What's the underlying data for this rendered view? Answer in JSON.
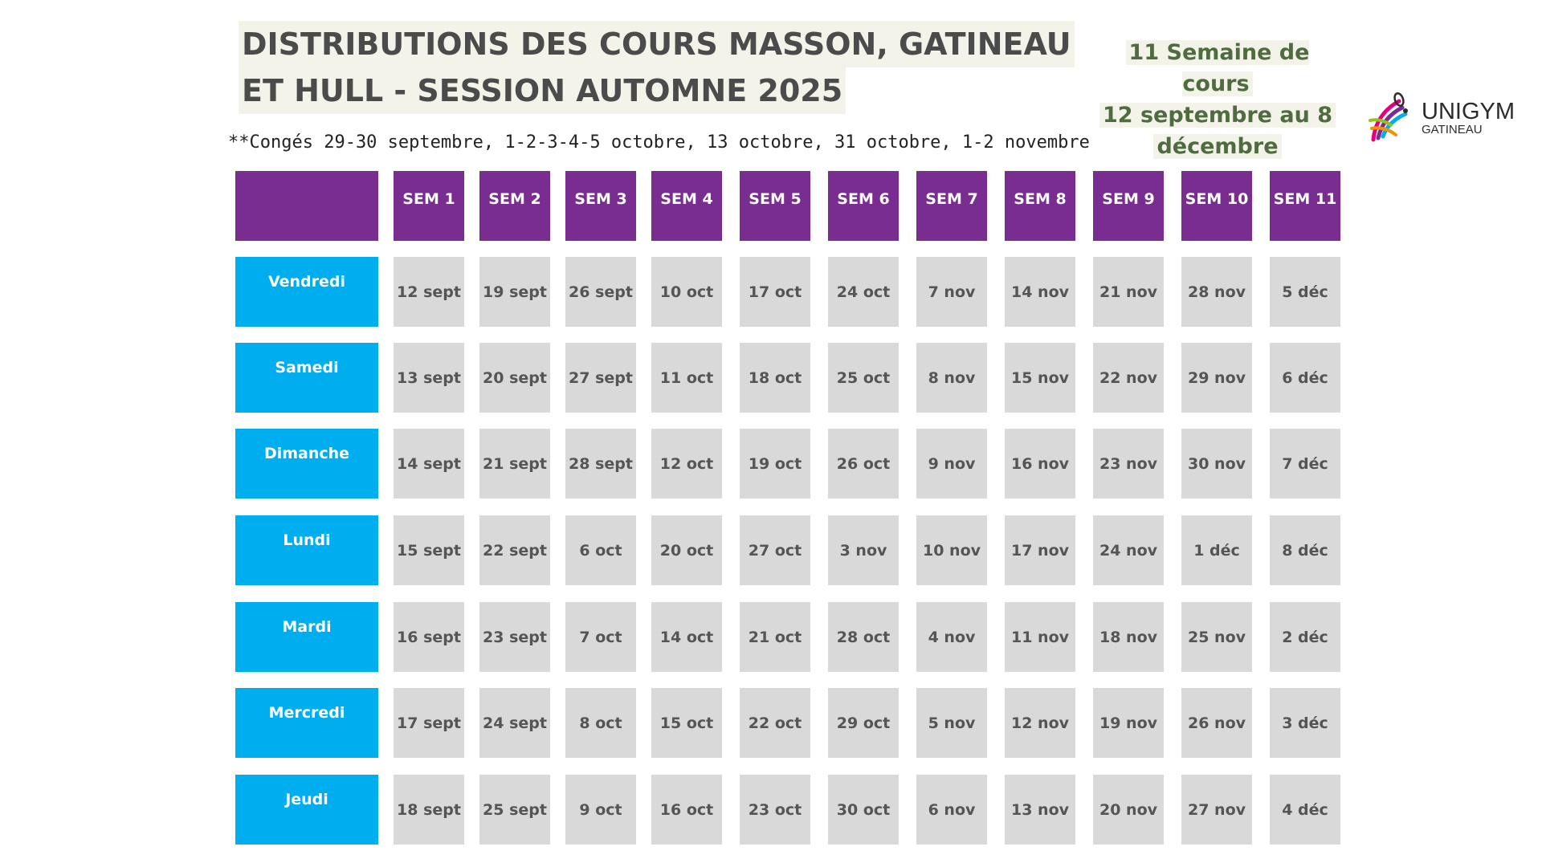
{
  "title": {
    "line1": "DISTRIBUTIONS DES COURS MASSON, GATINEAU",
    "line2": "ET HULL - SESSION AUTOMNE 2025"
  },
  "session_info": {
    "line1": "11 Semaine de cours",
    "line2": "12 septembre au 8",
    "line3": "décembre"
  },
  "logo": {
    "name": "UNIGYM",
    "sub": "GATINEAU"
  },
  "holidays_note": "**Congés 29-30 septembre, 1-2-3-4-5 octobre, 13 octobre, 31 octobre, 1-2 novembre",
  "colors": {
    "header_purple": "#7a2d91",
    "day_blue": "#00adef",
    "date_grey": "#d9d9d9",
    "title_bg": "#f3f3ea",
    "session_green": "#4f6b40"
  },
  "schedule": {
    "weeks": [
      "SEM 1",
      "SEM 2",
      "SEM 3",
      "SEM 4",
      "SEM 5",
      "SEM 6",
      "SEM 7",
      "SEM 8",
      "SEM 9",
      "SEM 10",
      "SEM 11"
    ],
    "rows": [
      {
        "day": "Vendredi",
        "dates": [
          "12 sept",
          "19 sept",
          "26 sept",
          "10 oct",
          "17 oct",
          "24 oct",
          "7 nov",
          "14 nov",
          "21 nov",
          "28 nov",
          "5 déc"
        ]
      },
      {
        "day": "Samedi",
        "dates": [
          "13 sept",
          "20 sept",
          "27 sept",
          "11 oct",
          "18 oct",
          "25 oct",
          "8 nov",
          "15 nov",
          "22 nov",
          "29 nov",
          "6 déc"
        ]
      },
      {
        "day": "Dimanche",
        "dates": [
          "14 sept",
          "21 sept",
          "28 sept",
          "12 oct",
          "19 oct",
          "26 oct",
          "9 nov",
          "16 nov",
          "23 nov",
          "30 nov",
          "7 déc"
        ]
      },
      {
        "day": "Lundi",
        "dates": [
          "15 sept",
          "22 sept",
          "6 oct",
          "20 oct",
          "27 oct",
          "3 nov",
          "10 nov",
          "17 nov",
          "24 nov",
          "1 déc",
          "8 déc"
        ]
      },
      {
        "day": "Mardi",
        "dates": [
          "16 sept",
          "23 sept",
          "7 oct",
          "14 oct",
          "21 oct",
          "28 oct",
          "4 nov",
          "11 nov",
          "18 nov",
          "25 nov",
          "2 déc"
        ]
      },
      {
        "day": "Mercredi",
        "dates": [
          "17 sept",
          "24 sept",
          "8 oct",
          "15 oct",
          "22 oct",
          "29 oct",
          "5 nov",
          "12 nov",
          "19 nov",
          "26 nov",
          "3 déc"
        ]
      },
      {
        "day": "Jeudi",
        "dates": [
          "18 sept",
          "25 sept",
          "9 oct",
          "16 oct",
          "23 oct",
          "30 oct",
          "6 nov",
          "13 nov",
          "20 nov",
          "27 nov",
          "4 déc"
        ]
      }
    ]
  }
}
